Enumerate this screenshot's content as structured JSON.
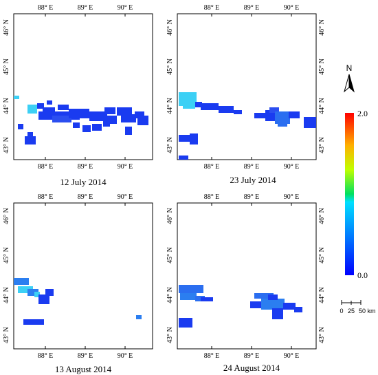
{
  "lon_labels": [
    "88° E",
    "89° E",
    "90° E"
  ],
  "lat_labels": [
    "43° N",
    "44° N",
    "45° N",
    "46° N"
  ],
  "panels": [
    {
      "caption": "12 July 2014"
    },
    {
      "caption": "23 July 2014"
    },
    {
      "caption": "13 August 2014"
    },
    {
      "caption": "24 August 2014"
    }
  ],
  "north_arrow": {
    "label": "N"
  },
  "colorbar": {
    "max_label": "2.0",
    "min_label": "0.0",
    "stops": [
      "#0000ff",
      "#0070ff",
      "#00dfff",
      "#00e040",
      "#e0ff00",
      "#ffa000",
      "#ff0000"
    ]
  },
  "scale_bar": {
    "labels": [
      "0",
      "25",
      "50 km"
    ]
  },
  "colors": {
    "deep_blue": "#1a3bf0",
    "mid_blue": "#2b7ef0",
    "cyan": "#3cd0f5",
    "frame": "#000000"
  }
}
